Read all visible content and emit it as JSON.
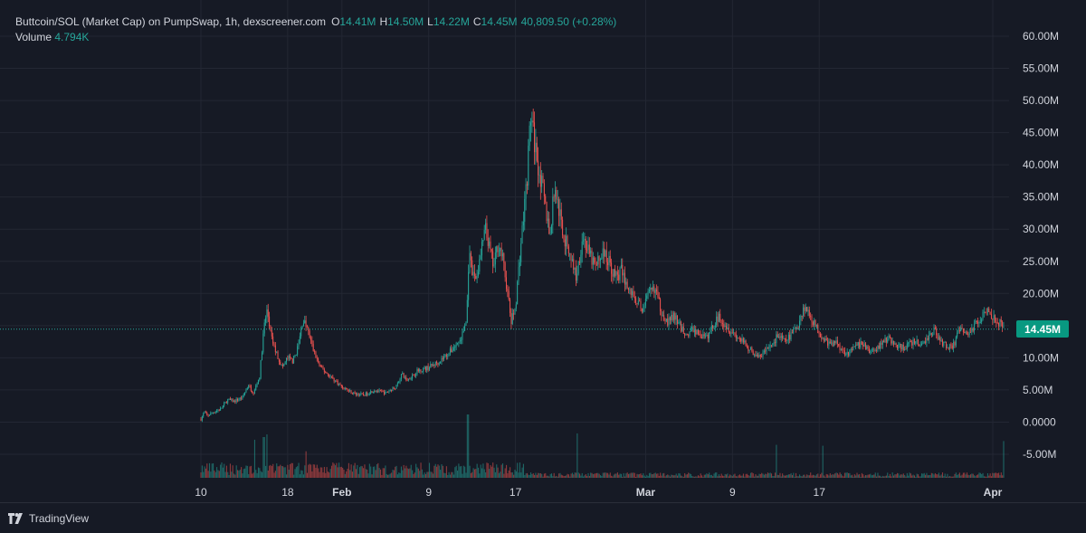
{
  "legend": {
    "title": "Buttcoin/SOL (Market Cap) on PumpSwap, 1h, dexscreener.com",
    "open_key": "O",
    "open": "14.41M",
    "high_key": "H",
    "high": "14.50M",
    "low_key": "L",
    "low": "14.22M",
    "close_key": "C",
    "close": "14.45M",
    "change": "40,809.50 (+0.28%)",
    "volume_label": "Volume",
    "volume_value": "4.794K"
  },
  "price_tag": "14.45M",
  "footer": {
    "brand": "TradingView"
  },
  "colors": {
    "background": "#161a25",
    "grid": "#232733",
    "up": "#26a69a",
    "down": "#ef5350",
    "price_line": "#26a69a",
    "tag": "#089981"
  },
  "chart_data": {
    "type": "candlestick",
    "y_ticks": [
      "60.00M",
      "55.00M",
      "50.00M",
      "45.00M",
      "40.00M",
      "35.00M",
      "30.00M",
      "25.00M",
      "20.00M",
      "15.00M",
      "10.00M",
      "5.00M",
      "0.0000",
      "-5.00M"
    ],
    "y_tick_values": [
      60,
      55,
      50,
      45,
      40,
      35,
      30,
      25,
      20,
      15,
      10,
      5,
      0,
      -5
    ],
    "ylim_millions": [
      -8.8,
      63
    ],
    "x_ticks": [
      {
        "label": "10",
        "day": 10,
        "bold": false
      },
      {
        "label": "18",
        "day": 18,
        "bold": false
      },
      {
        "label": "Feb",
        "day": 23,
        "bold": true
      },
      {
        "label": "9",
        "day": 31,
        "bold": false
      },
      {
        "label": "17",
        "day": 39,
        "bold": false
      },
      {
        "label": "Mar",
        "day": 51,
        "bold": true
      },
      {
        "label": "9",
        "day": 59,
        "bold": false
      },
      {
        "label": "17",
        "day": 67,
        "bold": false
      },
      {
        "label": "Apr",
        "day": 83,
        "bold": true
      }
    ],
    "x_unit": "days since Jan 1",
    "series_anchors_millions": [
      [
        10.0,
        0.5
      ],
      [
        10.3,
        1.5
      ],
      [
        10.6,
        1.0
      ],
      [
        11.2,
        1.6
      ],
      [
        11.8,
        2.0
      ],
      [
        12.5,
        3.5
      ],
      [
        13.0,
        3.2
      ],
      [
        13.8,
        3.8
      ],
      [
        14.4,
        5.8
      ],
      [
        14.8,
        4.5
      ],
      [
        15.4,
        7.0
      ],
      [
        15.8,
        14.5
      ],
      [
        16.1,
        17.5
      ],
      [
        16.5,
        13.0
      ],
      [
        17.0,
        10.5
      ],
      [
        17.5,
        8.5
      ],
      [
        18.0,
        10.0
      ],
      [
        18.5,
        9.5
      ],
      [
        19.0,
        12.0
      ],
      [
        19.4,
        16.0
      ],
      [
        19.8,
        14.5
      ],
      [
        20.4,
        11.0
      ],
      [
        21.0,
        8.5
      ],
      [
        22.0,
        7.0
      ],
      [
        23.0,
        5.5
      ],
      [
        24.0,
        4.5
      ],
      [
        25.0,
        4.2
      ],
      [
        26.0,
        5.0
      ],
      [
        27.0,
        4.5
      ],
      [
        28.0,
        5.5
      ],
      [
        28.5,
        7.5
      ],
      [
        29.0,
        6.5
      ],
      [
        30.0,
        8.0
      ],
      [
        31.0,
        8.5
      ],
      [
        32.0,
        9.5
      ],
      [
        33.0,
        11.0
      ],
      [
        34.0,
        13.0
      ],
      [
        34.5,
        16.0
      ],
      [
        34.7,
        26.0
      ],
      [
        35.0,
        23.0
      ],
      [
        35.4,
        22.5
      ],
      [
        35.8,
        26.0
      ],
      [
        36.2,
        30.0
      ],
      [
        36.6,
        27.0
      ],
      [
        37.0,
        24.0
      ],
      [
        37.4,
        28.0
      ],
      [
        37.8,
        25.5
      ],
      [
        38.2,
        21.0
      ],
      [
        38.6,
        15.5
      ],
      [
        39.0,
        18.0
      ],
      [
        39.4,
        26.0
      ],
      [
        39.8,
        33.0
      ],
      [
        40.1,
        39.0
      ],
      [
        40.4,
        48.0
      ],
      [
        40.7,
        44.0
      ],
      [
        41.0,
        41.0
      ],
      [
        41.4,
        37.0
      ],
      [
        41.8,
        33.0
      ],
      [
        42.2,
        29.0
      ],
      [
        42.6,
        37.0
      ],
      [
        43.0,
        33.0
      ],
      [
        43.5,
        28.5
      ],
      [
        44.0,
        26.5
      ],
      [
        44.6,
        22.5
      ],
      [
        45.2,
        29.0
      ],
      [
        45.8,
        26.0
      ],
      [
        46.4,
        24.0
      ],
      [
        47.0,
        26.5
      ],
      [
        47.6,
        25.0
      ],
      [
        48.2,
        22.5
      ],
      [
        48.8,
        23.5
      ],
      [
        49.4,
        20.5
      ],
      [
        50.0,
        19.5
      ],
      [
        50.6,
        17.5
      ],
      [
        51.2,
        19.5
      ],
      [
        51.8,
        21.0
      ],
      [
        52.4,
        17.5
      ],
      [
        53.0,
        15.5
      ],
      [
        53.6,
        16.5
      ],
      [
        54.2,
        14.8
      ],
      [
        54.8,
        13.5
      ],
      [
        55.4,
        14.5
      ],
      [
        56.0,
        13.5
      ],
      [
        56.6,
        13.0
      ],
      [
        57.2,
        15.0
      ],
      [
        57.8,
        16.5
      ],
      [
        58.4,
        15.0
      ],
      [
        59.0,
        14.0
      ],
      [
        59.6,
        13.0
      ],
      [
        60.2,
        12.0
      ],
      [
        60.8,
        11.0
      ],
      [
        61.4,
        10.0
      ],
      [
        62.0,
        11.0
      ],
      [
        62.6,
        12.0
      ],
      [
        63.2,
        13.5
      ],
      [
        63.8,
        12.5
      ],
      [
        64.4,
        13.5
      ],
      [
        65.0,
        15.0
      ],
      [
        65.6,
        18.0
      ],
      [
        66.2,
        16.5
      ],
      [
        66.8,
        14.5
      ],
      [
        67.4,
        13.0
      ],
      [
        68.0,
        12.0
      ],
      [
        68.6,
        12.5
      ],
      [
        69.2,
        11.0
      ],
      [
        69.8,
        10.8
      ],
      [
        70.4,
        11.8
      ],
      [
        71.0,
        12.2
      ],
      [
        71.6,
        11.0
      ],
      [
        72.2,
        11.2
      ],
      [
        72.8,
        12.5
      ],
      [
        73.4,
        13.0
      ],
      [
        74.0,
        12.0
      ],
      [
        74.6,
        11.5
      ],
      [
        75.2,
        12.0
      ],
      [
        75.8,
        12.5
      ],
      [
        76.4,
        12.0
      ],
      [
        77.0,
        13.0
      ],
      [
        77.6,
        14.5
      ],
      [
        78.2,
        12.5
      ],
      [
        78.8,
        11.8
      ],
      [
        79.4,
        12.0
      ],
      [
        80.0,
        14.5
      ],
      [
        80.6,
        13.5
      ],
      [
        81.2,
        14.8
      ],
      [
        81.8,
        16.0
      ],
      [
        82.4,
        17.8
      ],
      [
        83.0,
        16.5
      ],
      [
        83.6,
        15.5
      ],
      [
        84.0,
        14.45
      ]
    ]
  }
}
